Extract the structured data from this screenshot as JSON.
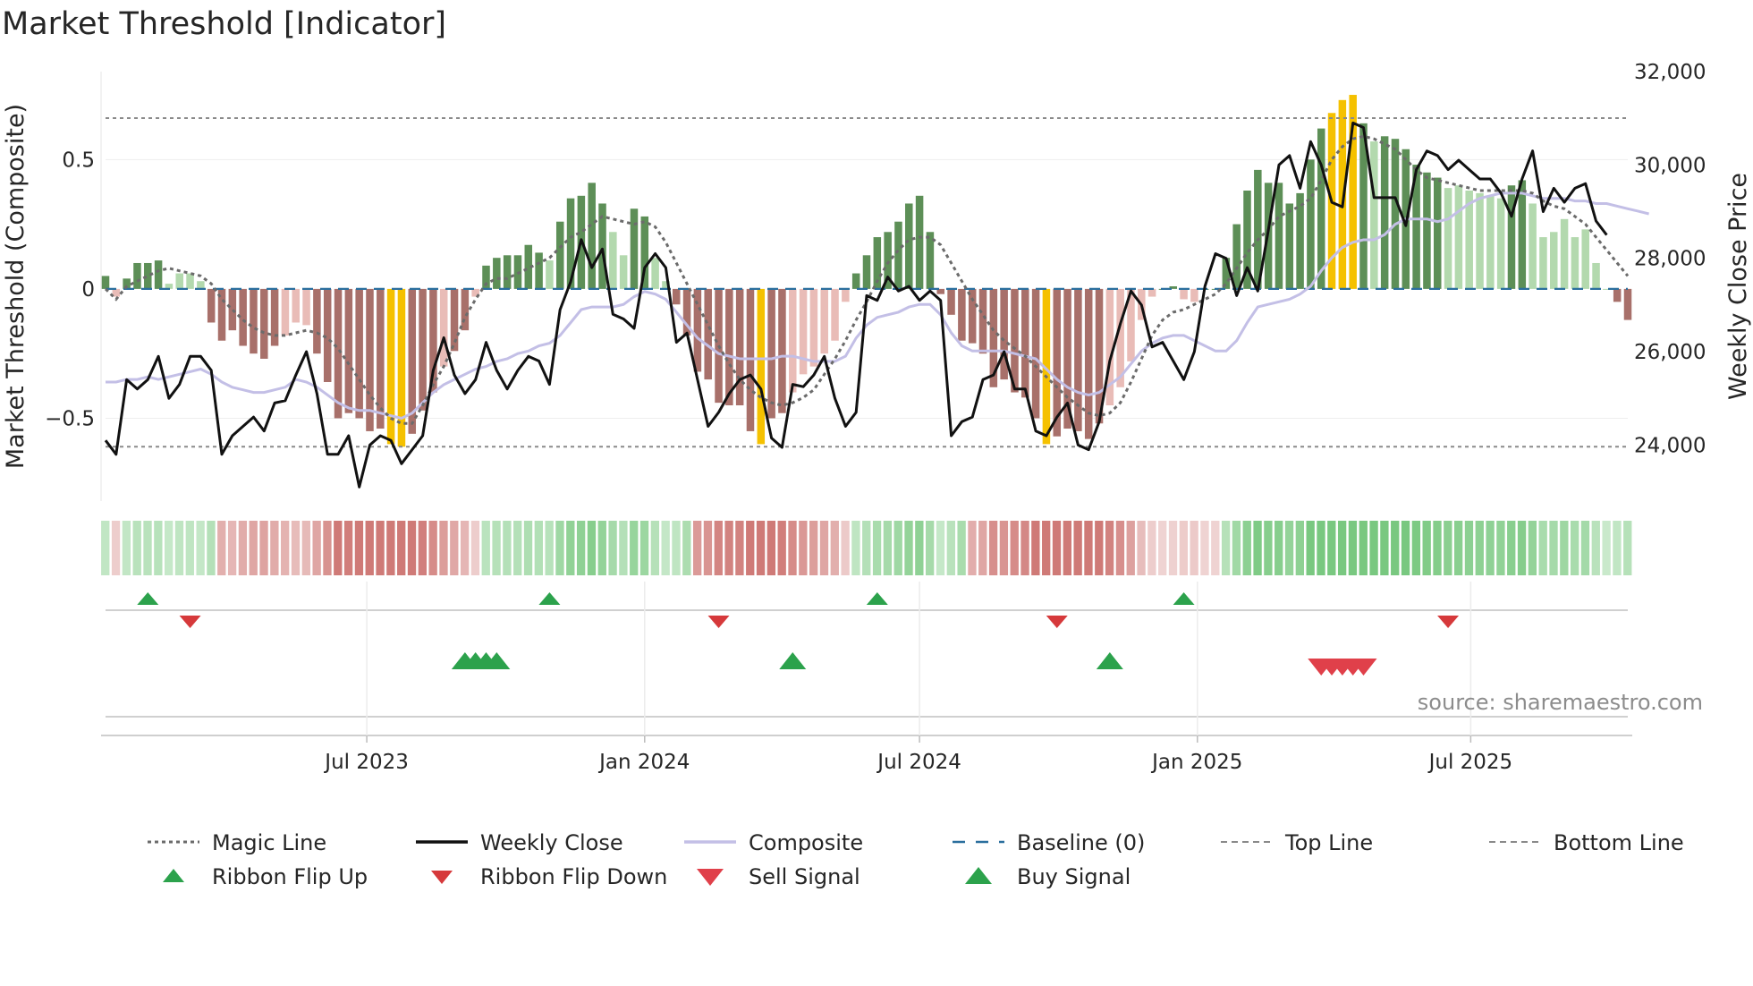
{
  "chart_data": {
    "type": "bar",
    "title": "Market Threshold [Indicator]",
    "source": "source: sharemaestro.com",
    "ylabel_left": "Market Threshold (Composite)",
    "ylabel_right": "Weekly Close Price",
    "ylim_left": [
      -0.82,
      0.84
    ],
    "ylim_right": [
      22800,
      32000
    ],
    "yticks_left": [
      {
        "v": 0.5,
        "label": "0.5"
      },
      {
        "v": 0,
        "label": "0"
      },
      {
        "v": -0.5,
        "label": "−0.5"
      }
    ],
    "yticks_right": [
      {
        "v": 24000,
        "label": "24,000"
      },
      {
        "v": 26000,
        "label": "26,000"
      },
      {
        "v": 28000,
        "label": "28,000"
      },
      {
        "v": 30000,
        "label": "30,000"
      },
      {
        "v": 32000,
        "label": "32,000"
      }
    ],
    "top_line": 0.66,
    "bottom_line": -0.61,
    "x_start": "2023-01-09",
    "xticks": [
      {
        "date": "2023-07-01",
        "label": "Jul 2023"
      },
      {
        "date": "2024-01-01",
        "label": "Jan 2024"
      },
      {
        "date": "2024-07-01",
        "label": "Jul 2024"
      },
      {
        "date": "2025-01-01",
        "label": "Jan 2025"
      },
      {
        "date": "2025-07-01",
        "label": "Jul 2025"
      }
    ],
    "composite_bars": [
      0.05,
      -0.03,
      0.04,
      0.1,
      0.1,
      0.11,
      0.02,
      0.06,
      0.06,
      0.03,
      -0.13,
      -0.2,
      -0.16,
      -0.22,
      -0.25,
      -0.27,
      -0.22,
      -0.18,
      -0.13,
      -0.14,
      -0.25,
      -0.36,
      -0.5,
      -0.48,
      -0.5,
      -0.55,
      -0.54,
      -0.6,
      -0.61,
      -0.56,
      -0.47,
      -0.4,
      -0.3,
      -0.24,
      -0.16,
      -0.03,
      0.09,
      0.12,
      0.13,
      0.13,
      0.17,
      0.14,
      0.11,
      0.26,
      0.35,
      0.36,
      0.41,
      0.33,
      0.22,
      0.13,
      0.31,
      0.28,
      0.12,
      0.03,
      -0.06,
      -0.18,
      -0.32,
      -0.35,
      -0.44,
      -0.45,
      -0.45,
      -0.55,
      -0.6,
      -0.5,
      -0.48,
      -0.4,
      -0.33,
      -0.3,
      -0.25,
      -0.2,
      -0.05,
      0.06,
      0.13,
      0.2,
      0.22,
      0.26,
      0.33,
      0.36,
      0.22,
      -0.02,
      -0.1,
      -0.2,
      -0.21,
      -0.25,
      -0.38,
      -0.35,
      -0.4,
      -0.42,
      -0.5,
      -0.6,
      -0.57,
      -0.54,
      -0.55,
      -0.58,
      -0.52,
      -0.45,
      -0.38,
      -0.28,
      -0.12,
      -0.03,
      0.0,
      0.01,
      -0.04,
      -0.05,
      0.0,
      0.0,
      0.12,
      0.25,
      0.38,
      0.46,
      0.41,
      0.41,
      0.33,
      0.37,
      0.5,
      0.62,
      0.68,
      0.73,
      0.75,
      0.64,
      0.57,
      0.59,
      0.58,
      0.54,
      0.48,
      0.45,
      0.43,
      0.39,
      0.4,
      0.38,
      0.37,
      0.36,
      0.35,
      0.4,
      0.42,
      0.33,
      0.2,
      0.22,
      0.27,
      0.2,
      0.23,
      0.1,
      0.0,
      -0.05,
      -0.12
    ],
    "composite_line": [
      -0.36,
      -0.36,
      -0.35,
      -0.35,
      -0.34,
      -0.35,
      -0.34,
      -0.33,
      -0.32,
      -0.31,
      -0.33,
      -0.36,
      -0.38,
      -0.39,
      -0.4,
      -0.4,
      -0.39,
      -0.38,
      -0.35,
      -0.36,
      -0.38,
      -0.41,
      -0.44,
      -0.46,
      -0.47,
      -0.47,
      -0.48,
      -0.49,
      -0.5,
      -0.48,
      -0.44,
      -0.4,
      -0.37,
      -0.35,
      -0.33,
      -0.31,
      -0.3,
      -0.28,
      -0.27,
      -0.25,
      -0.24,
      -0.22,
      -0.21,
      -0.18,
      -0.13,
      -0.08,
      -0.07,
      -0.07,
      -0.07,
      -0.06,
      -0.03,
      -0.01,
      -0.02,
      -0.04,
      -0.09,
      -0.14,
      -0.19,
      -0.22,
      -0.25,
      -0.26,
      -0.27,
      -0.27,
      -0.27,
      -0.27,
      -0.26,
      -0.26,
      -0.27,
      -0.28,
      -0.28,
      -0.28,
      -0.26,
      -0.19,
      -0.14,
      -0.11,
      -0.1,
      -0.09,
      -0.07,
      -0.06,
      -0.06,
      -0.1,
      -0.17,
      -0.22,
      -0.24,
      -0.24,
      -0.24,
      -0.24,
      -0.25,
      -0.26,
      -0.27,
      -0.31,
      -0.35,
      -0.38,
      -0.4,
      -0.41,
      -0.4,
      -0.37,
      -0.34,
      -0.29,
      -0.24,
      -0.21,
      -0.19,
      -0.18,
      -0.18,
      -0.2,
      -0.22,
      -0.24,
      -0.24,
      -0.2,
      -0.13,
      -0.07,
      -0.06,
      -0.05,
      -0.04,
      -0.02,
      0.01,
      0.07,
      0.12,
      0.16,
      0.18,
      0.19,
      0.19,
      0.21,
      0.25,
      0.27,
      0.27,
      0.27,
      0.26,
      0.27,
      0.3,
      0.33,
      0.35,
      0.36,
      0.37,
      0.37,
      0.37,
      0.36,
      0.35,
      0.35,
      0.35,
      0.34,
      0.34,
      0.33,
      0.33,
      0.32,
      0.31,
      0.3,
      0.29
    ],
    "magic_line": [
      0.0,
      -0.04,
      0.01,
      0.03,
      0.05,
      0.07,
      0.08,
      0.07,
      0.06,
      0.05,
      0.02,
      -0.04,
      -0.08,
      -0.12,
      -0.15,
      -0.17,
      -0.18,
      -0.18,
      -0.17,
      -0.16,
      -0.17,
      -0.19,
      -0.23,
      -0.29,
      -0.35,
      -0.41,
      -0.46,
      -0.5,
      -0.52,
      -0.52,
      -0.45,
      -0.37,
      -0.3,
      -0.21,
      -0.11,
      -0.04,
      0.02,
      0.04,
      0.04,
      0.06,
      0.08,
      0.1,
      0.12,
      0.16,
      0.2,
      0.22,
      0.25,
      0.28,
      0.27,
      0.26,
      0.25,
      0.26,
      0.24,
      0.18,
      0.1,
      0.02,
      -0.06,
      -0.14,
      -0.22,
      -0.29,
      -0.35,
      -0.39,
      -0.42,
      -0.44,
      -0.45,
      -0.44,
      -0.42,
      -0.39,
      -0.33,
      -0.27,
      -0.2,
      -0.12,
      -0.05,
      0.03,
      0.1,
      0.15,
      0.19,
      0.2,
      0.2,
      0.17,
      0.1,
      0.03,
      -0.04,
      -0.1,
      -0.16,
      -0.2,
      -0.23,
      -0.26,
      -0.3,
      -0.34,
      -0.38,
      -0.42,
      -0.45,
      -0.48,
      -0.49,
      -0.48,
      -0.44,
      -0.36,
      -0.27,
      -0.18,
      -0.12,
      -0.09,
      -0.08,
      -0.06,
      -0.04,
      -0.02,
      0.02,
      0.08,
      0.14,
      0.19,
      0.23,
      0.28,
      0.3,
      0.32,
      0.35,
      0.42,
      0.5,
      0.55,
      0.58,
      0.59,
      0.58,
      0.56,
      0.54,
      0.5,
      0.46,
      0.43,
      0.42,
      0.41,
      0.4,
      0.39,
      0.38,
      0.38,
      0.38,
      0.38,
      0.38,
      0.37,
      0.34,
      0.32,
      0.31,
      0.28,
      0.25,
      0.2,
      0.15,
      0.1,
      0.05
    ],
    "weekly_close": [
      24100,
      23800,
      25400,
      25200,
      25400,
      25900,
      25000,
      25300,
      25900,
      25900,
      25600,
      23800,
      24200,
      24400,
      24600,
      24300,
      24900,
      24950,
      25500,
      26000,
      25100,
      23800,
      23800,
      24200,
      23100,
      24000,
      24200,
      24100,
      23600,
      23900,
      24200,
      25600,
      26300,
      25500,
      25100,
      25400,
      26200,
      25600,
      25200,
      25600,
      25900,
      25800,
      25300,
      26900,
      27500,
      28400,
      27800,
      28200,
      26800,
      26700,
      26500,
      27800,
      28100,
      27800,
      26200,
      26400,
      25400,
      24400,
      24700,
      25100,
      25400,
      25500,
      25200,
      24150,
      23950,
      25300,
      25250,
      25500,
      25900,
      25000,
      24400,
      24700,
      27200,
      27100,
      27600,
      27300,
      27400,
      27100,
      27300,
      27100,
      24200,
      24500,
      24600,
      25400,
      25500,
      26000,
      25200,
      25200,
      24300,
      24200,
      24600,
      24900,
      24000,
      23900,
      24500,
      25800,
      26600,
      27300,
      27000,
      26100,
      26200,
      25800,
      25400,
      26000,
      27400,
      28100,
      28000,
      27200,
      27800,
      27300,
      28600,
      30000,
      30200,
      29500,
      30500,
      30000,
      29200,
      29100,
      30900,
      30800,
      29300,
      29300,
      29300,
      28700,
      29900,
      30300,
      30200,
      29900,
      30100,
      29900,
      29700,
      29700,
      29400,
      28900,
      29700,
      30300,
      29000,
      29500,
      29200,
      29500,
      29600,
      28800,
      28500
    ],
    "ribbon_up_dates": [
      "2023-02-06",
      "2023-10-30",
      "2024-06-03",
      "2024-12-23"
    ],
    "ribbon_down_dates": [
      "2023-03-06",
      "2024-02-19",
      "2024-09-30",
      "2025-06-16"
    ],
    "buy_signal_dates": [
      "2023-09-04",
      "2023-09-11",
      "2023-09-18",
      "2023-09-25",
      "2024-04-08",
      "2024-11-04"
    ],
    "sell_signal_dates": [
      "2025-03-24",
      "2025-03-31",
      "2025-04-07",
      "2025-04-14",
      "2025-04-21"
    ],
    "series": [
      {
        "name": "Magic Line",
        "style": "dotted",
        "color": "#6b6b6b"
      },
      {
        "name": "Weekly Close",
        "style": "solid",
        "color": "#111111"
      },
      {
        "name": "Composite",
        "style": "solid",
        "color": "#c3bfe6"
      },
      {
        "name": "Baseline (0)",
        "style": "dashed",
        "color": "#2b6f9e"
      },
      {
        "name": "Top Line",
        "style": "dashed",
        "color": "#8a8a8a"
      },
      {
        "name": "Bottom Line",
        "style": "dashed",
        "color": "#8a8a8a"
      }
    ],
    "legend": [
      {
        "label": "Magic Line",
        "kind": "dotted",
        "color": "#6b6b6b"
      },
      {
        "label": "Weekly Close",
        "kind": "solid",
        "color": "#111111"
      },
      {
        "label": "Composite",
        "kind": "solid",
        "color": "#c3bfe6"
      },
      {
        "label": "Baseline (0)",
        "kind": "dashed",
        "color": "#2b6f9e"
      },
      {
        "label": "Top Line",
        "kind": "dashedgray",
        "color": "#8a8a8a"
      },
      {
        "label": "Bottom Line",
        "kind": "dashedgray",
        "color": "#8a8a8a"
      },
      {
        "label": "Ribbon Flip Up",
        "kind": "triup",
        "color": "#2ca24c"
      },
      {
        "label": "Ribbon Flip Down",
        "kind": "tridown",
        "color": "#d6393b"
      },
      {
        "label": "Sell Signal",
        "kind": "tridownbig",
        "color": "#e0404a"
      },
      {
        "label": "Buy Signal",
        "kind": "triupbig",
        "color": "#2ca24c"
      }
    ],
    "colors": {
      "dark_green": "#5d8f57",
      "light_green": "#b3d9ae",
      "dark_red": "#a8706a",
      "light_red": "#e9bcb7",
      "extreme": "#f5c100",
      "up_marker": "#2ca24c",
      "down_marker": "#d6393b"
    }
  }
}
